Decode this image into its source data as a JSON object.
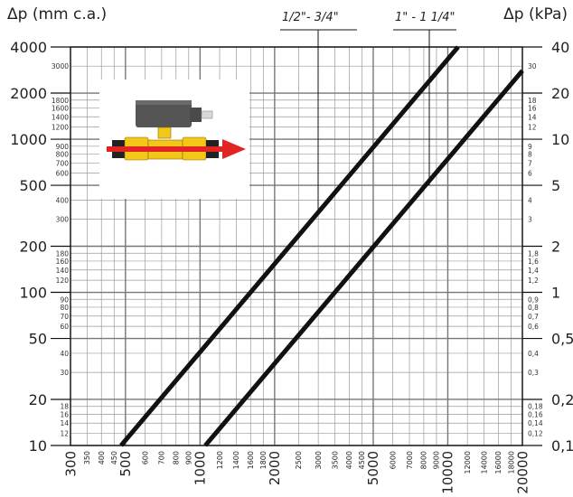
{
  "chart_data": {
    "type": "line",
    "left_axis_title": "Δp (mm c.a.)",
    "right_axis_title": "Δp (kPa)",
    "scale": "log-log",
    "grid": true,
    "x_range": [
      300,
      20000
    ],
    "y_range": [
      10,
      4000
    ],
    "x_major_ticks": [
      "300",
      "500",
      "1000",
      "2000",
      "5000",
      "10000",
      "20000"
    ],
    "x_minor_ticks": [
      "350",
      "400",
      "450",
      "600",
      "700",
      "800",
      "900",
      "1200",
      "1400",
      "1600",
      "1800",
      "2500",
      "3000",
      "3500",
      "4000",
      "4500",
      "6000",
      "7000",
      "8000",
      "9000",
      "12000",
      "14000",
      "16000",
      "18000"
    ],
    "y_left_major_ticks": [
      "10",
      "20",
      "50",
      "100",
      "200",
      "500",
      "1000",
      "2000",
      "4000"
    ],
    "y_left_minor_ticks": [
      "12",
      "14",
      "16",
      "18",
      "30",
      "40",
      "60",
      "70",
      "80",
      "90",
      "120",
      "140",
      "160",
      "180",
      "300",
      "400",
      "600",
      "700",
      "800",
      "900",
      "1200",
      "1400",
      "1600",
      "1800",
      "3000"
    ],
    "y_right_major_ticks": [
      "0,1",
      "0,2",
      "0,5",
      "1",
      "2",
      "5",
      "10",
      "20",
      "40"
    ],
    "y_right_minor_ticks": [
      "0,12",
      "0,14",
      "0,16",
      "0,18",
      "0,3",
      "0,4",
      "0,6",
      "0,7",
      "0,8",
      "0,9",
      "1,2",
      "1,4",
      "1,6",
      "1,8",
      "3",
      "4",
      "6",
      "7",
      "8",
      "9",
      "12",
      "14",
      "16",
      "18",
      "30"
    ],
    "series": [
      {
        "name": "1/2\"- 3/4\"",
        "points": [
          [
            480,
            10
          ],
          [
            11000,
            4000
          ]
        ]
      },
      {
        "name": "1\" - 1 1/4\"",
        "points": [
          [
            1050,
            10
          ],
          [
            20000,
            2800
          ]
        ]
      }
    ]
  },
  "colors": {
    "grid": "#9a9a9a",
    "line": "#111111",
    "arrow": "#e22323",
    "valve": "#f3c71a",
    "actuator": "#555555"
  }
}
